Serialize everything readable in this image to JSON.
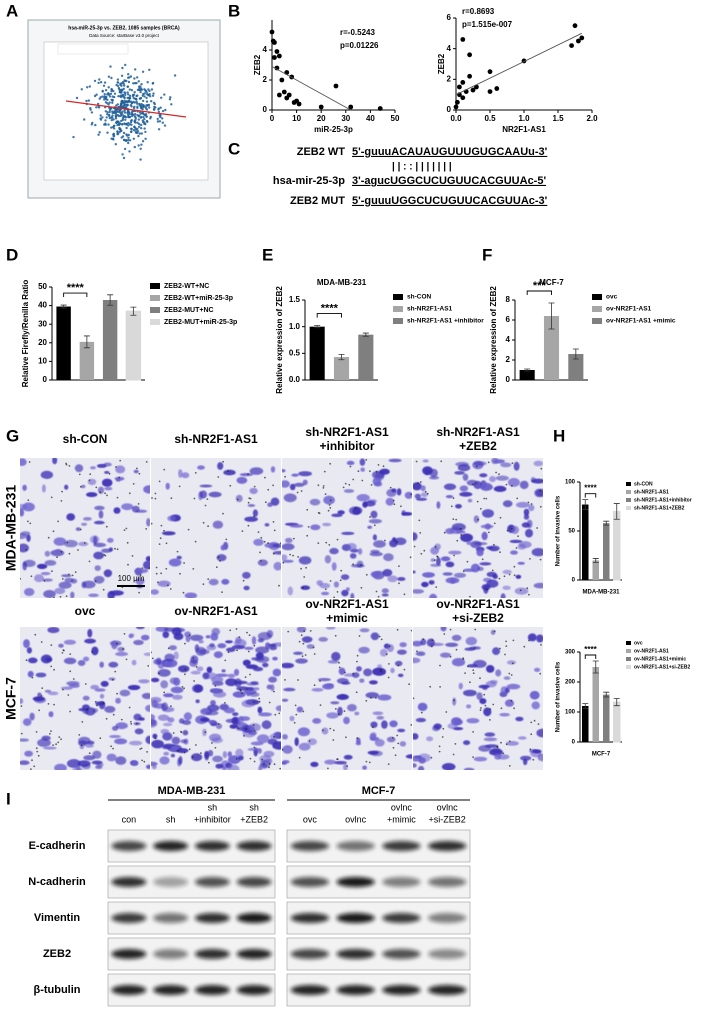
{
  "panel_labels": [
    "A",
    "B",
    "C",
    "D",
    "E",
    "F",
    "G",
    "H",
    "I"
  ],
  "panel_a": {
    "title": "hsa-miR-25-3p vs. ZEB2, 1085 samples (BRCA)",
    "source": "Data Source: starBase v3.0 project"
  },
  "panel_c": {
    "rows": [
      {
        "label": "ZEB2 WT",
        "sequence": "5'-guuuACAUAUGUUUGUGCAAUu-3'"
      },
      {
        "label": "hsa-mir-25-3p",
        "sequence": "3'-agucUGGCUCUGUUCACGUUAc-5'"
      },
      {
        "label": "ZEB2 MUT",
        "sequence": "5'-guuuUGGCUCUGUUCACGUUAc-3'"
      }
    ],
    "pairing": "|    |   :  :    | | | | | | |"
  },
  "chart_data": [
    {
      "type": "scatter",
      "xlabel": "miR-25-3p",
      "ylabel": "ZEB2",
      "xlim": [
        0,
        50
      ],
      "ylim": [
        0,
        6
      ],
      "xticks": [
        0,
        10,
        20,
        30,
        40,
        50
      ],
      "yticks": [
        0,
        2,
        4
      ],
      "color": "#000000",
      "x": [
        0,
        0.5,
        1,
        1,
        2,
        2,
        3,
        3,
        4,
        5,
        6,
        6,
        7,
        8,
        9,
        10,
        11,
        20,
        26,
        32,
        44
      ],
      "y": [
        5.2,
        4.6,
        4.5,
        3.5,
        3.9,
        2.8,
        3.6,
        1.0,
        2.0,
        1.2,
        2.5,
        0.8,
        1.0,
        2.2,
        0.5,
        0.6,
        0.4,
        0.2,
        1.6,
        0.2,
        0.1
      ],
      "trend_line": {
        "x": [
          0,
          32
        ],
        "y": [
          2.9,
          0
        ]
      },
      "annotations": [
        "r=-0.5243",
        "p=0.01226"
      ]
    },
    {
      "type": "scatter",
      "xlabel": "NR2F1-AS1",
      "ylabel": "ZEB2",
      "xlim": [
        0,
        2
      ],
      "ylim": [
        0,
        6
      ],
      "xticks": [
        {
          "value": 0,
          "label": "0.0"
        },
        0.5,
        {
          "value": 1,
          "label": "1.0"
        },
        1.5,
        {
          "value": 2,
          "label": "2.0"
        }
      ],
      "yticks": [
        0,
        2,
        4,
        6
      ],
      "color": "#000000",
      "x": [
        0,
        0.02,
        0.05,
        0.05,
        0.1,
        0.1,
        0.1,
        0.15,
        0.2,
        0.2,
        0.25,
        0.3,
        0.5,
        0.5,
        0.6,
        1.0,
        1.7,
        1.75,
        1.8,
        1.85
      ],
      "y": [
        0.2,
        0.5,
        1.0,
        1.5,
        0.8,
        1.8,
        4.6,
        1.2,
        2.2,
        3.6,
        1.3,
        1.5,
        2.5,
        1.2,
        1.4,
        3.2,
        4.2,
        5.5,
        4.5,
        4.7
      ],
      "trend_line": {
        "x": [
          0,
          1.85
        ],
        "y": [
          1.0,
          5.0
        ]
      },
      "annotations": [
        "r=0.8693",
        "p=1.515e-007"
      ]
    },
    {
      "type": "bar",
      "ylabel": "Relative Firefly/Renilla Ratio",
      "ylim": [
        0,
        50
      ],
      "yticks": [
        0,
        10,
        20,
        30,
        40,
        50
      ],
      "categories": [
        null
      ],
      "significance": "****",
      "series": [
        {
          "name": "ZEB2-WT+NC",
          "color": "#000000",
          "values": [
            39.5
          ],
          "errors": [
            0.8
          ]
        },
        {
          "name": "ZEB2-WT+miR-25-3p",
          "color": "#a6a6a6",
          "values": [
            20.5
          ],
          "errors": [
            3.2
          ]
        },
        {
          "name": "ZEB2-MUT+NC",
          "color": "#7f7f7f",
          "values": [
            43
          ],
          "errors": [
            2.8
          ]
        },
        {
          "name": "ZEB2-MUT+miR-25-3p",
          "color": "#d9d9d9",
          "values": [
            37
          ],
          "errors": [
            2.2
          ]
        }
      ]
    },
    {
      "type": "bar",
      "title": "MDA-MB-231",
      "ylabel": "Relative expression of ZEB2",
      "ylim": [
        0,
        1.5
      ],
      "yticks": [
        {
          "value": 0,
          "label": "0.0"
        },
        0.5,
        {
          "value": 1,
          "label": "1.0"
        },
        1.5
      ],
      "categories": [
        null
      ],
      "significance": "****",
      "series": [
        {
          "name": "sh-CON",
          "color": "#000000",
          "values": [
            1.0
          ],
          "errors": [
            0.02
          ]
        },
        {
          "name": "sh-NR2F1-AS1",
          "color": "#a6a6a6",
          "values": [
            0.43
          ],
          "errors": [
            0.05
          ]
        },
        {
          "name": "sh-NR2F1-AS1 +inhibitor",
          "color": "#7f7f7f",
          "values": [
            0.85
          ],
          "errors": [
            0.03
          ]
        }
      ]
    },
    {
      "type": "bar",
      "title": "MCF-7",
      "ylabel": "Relative expression of ZEB2",
      "ylim": [
        0,
        8
      ],
      "yticks": [
        0,
        2,
        4,
        6,
        8
      ],
      "categories": [
        null
      ],
      "significance": "***",
      "series": [
        {
          "name": "ovc",
          "color": "#000000",
          "values": [
            1.0
          ],
          "errors": [
            0.1
          ]
        },
        {
          "name": "ov-NR2F1-AS1",
          "color": "#a6a6a6",
          "values": [
            6.4
          ],
          "errors": [
            1.3
          ]
        },
        {
          "name": "ov-NR2F1-AS1 +mimic",
          "color": "#7f7f7f",
          "values": [
            2.6
          ],
          "errors": [
            0.5
          ]
        }
      ]
    },
    {
      "type": "bar",
      "xlabel": "MDA-MB-231",
      "ylabel": "Number of invasive cells",
      "ylim": [
        0,
        100
      ],
      "yticks": [
        0,
        50,
        100
      ],
      "categories": [
        null
      ],
      "significance": "****",
      "series": [
        {
          "name": "sh-CON",
          "color": "#000000",
          "values": [
            77
          ],
          "errors": [
            5
          ]
        },
        {
          "name": "sh-NR2F1-AS1",
          "color": "#a6a6a6",
          "values": [
            20
          ],
          "errors": [
            2
          ]
        },
        {
          "name": "sh-NR2F1-AS1+inhibitor",
          "color": "#7f7f7f",
          "values": [
            58
          ],
          "errors": [
            2
          ]
        },
        {
          "name": "sh-NR2F1-AS1+ZEB2",
          "color": "#d9d9d9",
          "values": [
            70
          ],
          "errors": [
            8
          ]
        }
      ]
    },
    {
      "type": "bar",
      "xlabel": "MCF-7",
      "ylabel": "Number of invasive cells",
      "ylim": [
        0,
        300
      ],
      "yticks": [
        0,
        100,
        200,
        300
      ],
      "categories": [
        null
      ],
      "significance": "****",
      "series": [
        {
          "name": "ovc",
          "color": "#000000",
          "values": [
            120
          ],
          "errors": [
            8
          ]
        },
        {
          "name": "ov-NR2F1-AS1",
          "color": "#a6a6a6",
          "values": [
            250
          ],
          "errors": [
            20
          ]
        },
        {
          "name": "ov-NR2F1-AS1+mimic",
          "color": "#7f7f7f",
          "values": [
            158
          ],
          "errors": [
            8
          ]
        },
        {
          "name": "ov-NR2F1-AS1+si-ZEB2",
          "color": "#d9d9d9",
          "values": [
            133
          ],
          "errors": [
            12
          ]
        }
      ]
    }
  ],
  "panel_g": {
    "scale_bar": "100 μm",
    "rows": [
      {
        "label": "MDA-MB-231",
        "columns": [
          [
            "sh-CON"
          ],
          [
            "sh-NR2F1-AS1"
          ],
          [
            "sh-NR2F1-AS1",
            "+inhibitor"
          ],
          [
            "sh-NR2F1-AS1",
            "+ZEB2"
          ]
        ]
      },
      {
        "label": "MCF-7",
        "columns": [
          [
            "ovc"
          ],
          [
            "ov-NR2F1-AS1"
          ],
          [
            "ov-NR2F1-AS1",
            "+mimic"
          ],
          [
            "ov-NR2F1-AS1",
            "+si-ZEB2"
          ]
        ]
      }
    ]
  },
  "panel_i": {
    "groups": [
      {
        "name": "MDA-MB-231",
        "lanes": [
          [
            "con"
          ],
          [
            "sh"
          ],
          [
            "sh",
            "+inhibitor"
          ],
          [
            "sh",
            "+ZEB2"
          ]
        ]
      },
      {
        "name": "MCF-7",
        "lanes": [
          [
            "ovc"
          ],
          [
            "ovlnc"
          ],
          [
            "ovlnc",
            "+mimic"
          ],
          [
            "ovlnc",
            "+si-ZEB2"
          ]
        ]
      }
    ],
    "proteins": [
      "E-cadherin",
      "N-cadherin",
      "Vimentin",
      "ZEB2",
      "β-tubulin"
    ]
  }
}
